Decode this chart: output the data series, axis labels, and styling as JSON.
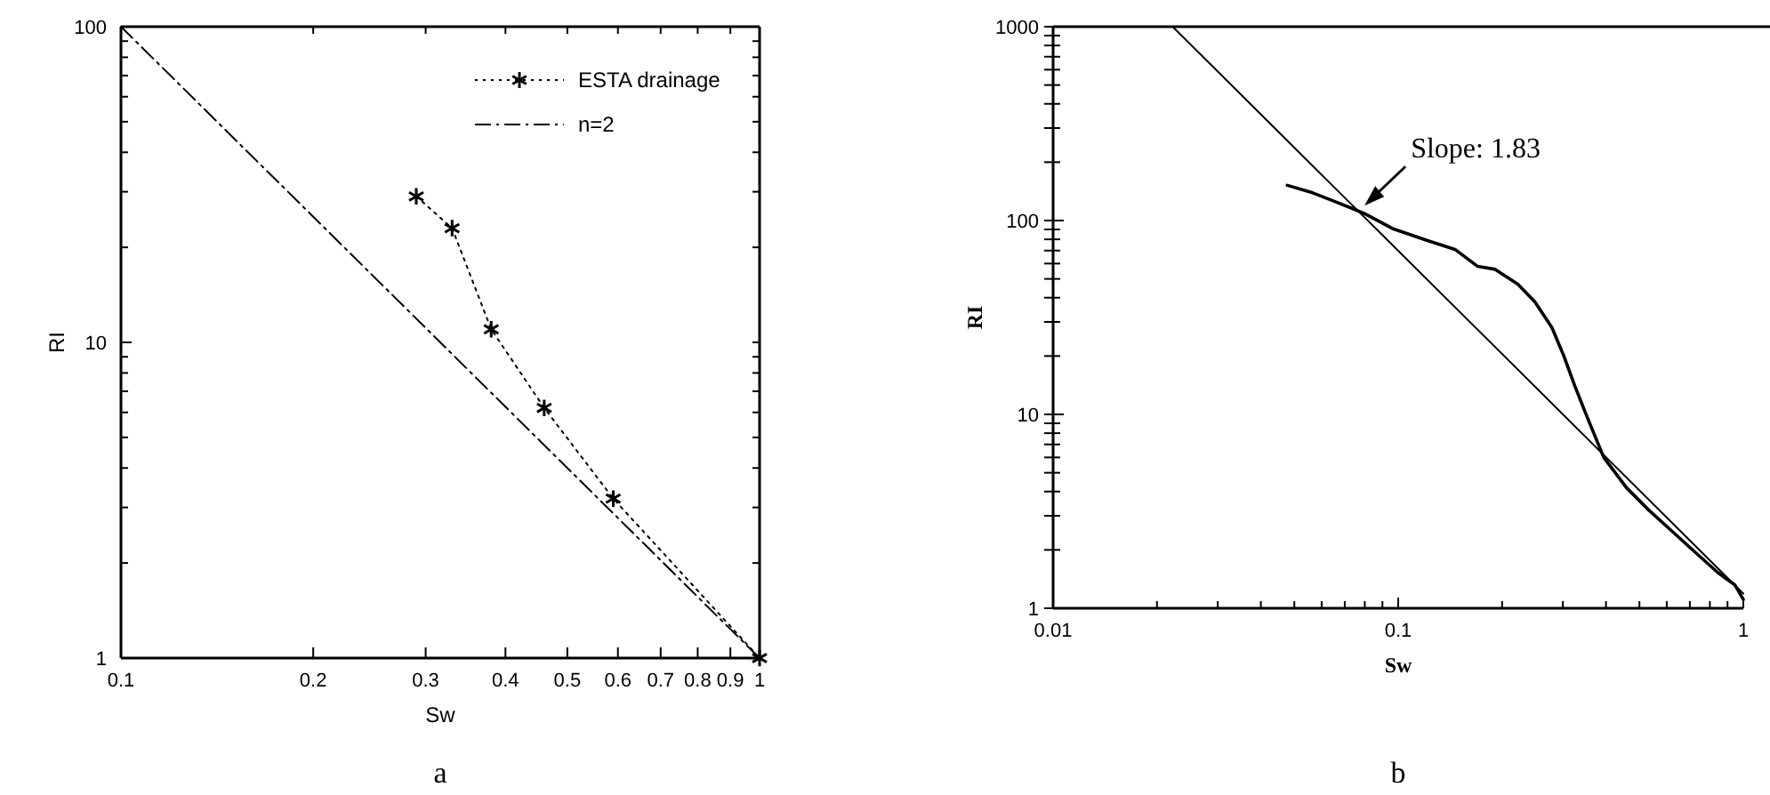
{
  "chart_data": [
    {
      "type": "line",
      "xlabel": "Sw",
      "ylabel": "RI",
      "log": "xy",
      "legend": "top right",
      "xlim": [
        0.1,
        1
      ],
      "ylim": [
        1,
        100
      ],
      "xticks": [
        0.1,
        0.2,
        0.3,
        0.4,
        0.5,
        0.6,
        0.7,
        0.8,
        0.9,
        1
      ],
      "yticks": [
        1,
        {
          "value": 2,
          "label": null
        },
        {
          "value": 3,
          "label": null
        },
        {
          "value": 4,
          "label": null
        },
        {
          "value": 5,
          "label": null
        },
        {
          "value": 6,
          "label": null
        },
        {
          "value": 7,
          "label": null
        },
        {
          "value": 8,
          "label": null
        },
        {
          "value": 9,
          "label": null
        },
        10,
        {
          "value": 20,
          "label": null
        },
        {
          "value": 30,
          "label": null
        },
        {
          "value": 40,
          "label": null
        },
        {
          "value": 50,
          "label": null
        },
        {
          "value": 60,
          "label": null
        },
        {
          "value": 70,
          "label": null
        },
        {
          "value": 80,
          "label": null
        },
        {
          "value": 90,
          "label": null
        },
        100
      ],
      "series": [
        {
          "name": "ESTA drainage",
          "color": "#000000",
          "marker": "cross",
          "line_style": "dotted",
          "x": [
            0.29,
            0.33,
            0.38,
            0.46,
            0.59,
            1
          ],
          "values": [
            29,
            23,
            11,
            6.2,
            3.2,
            1
          ]
        },
        {
          "name": "n=2",
          "color": "#000000",
          "marker": "none",
          "line_style": "dashed",
          "x": [
            0.1,
            1
          ],
          "values": [
            100,
            1
          ]
        }
      ],
      "annotations": [
        "a"
      ]
    },
    {
      "type": "line",
      "xlabel": "Sw",
      "ylabel": "RI",
      "log": "xy",
      "xlim": [
        0.01,
        1
      ],
      "ylim": [
        1,
        1000
      ],
      "xticks": [
        0.01,
        {
          "value": 0.02,
          "label": null
        },
        {
          "value": 0.03,
          "label": null
        },
        {
          "value": 0.04,
          "label": null
        },
        {
          "value": 0.05,
          "label": null
        },
        {
          "value": 0.06,
          "label": null
        },
        {
          "value": 0.07,
          "label": null
        },
        {
          "value": 0.08,
          "label": null
        },
        {
          "value": 0.09,
          "label": null
        },
        0.1,
        {
          "value": 0.2,
          "label": null
        },
        {
          "value": 0.3,
          "label": null
        },
        {
          "value": 0.4,
          "label": null
        },
        {
          "value": 0.5,
          "label": null
        },
        {
          "value": 0.6,
          "label": null
        },
        {
          "value": 0.7,
          "label": null
        },
        {
          "value": 0.8,
          "label": null
        },
        {
          "value": 0.9,
          "label": null
        },
        1
      ],
      "yticks": [
        1,
        {
          "value": 2,
          "label": null
        },
        {
          "value": 3,
          "label": null
        },
        {
          "value": 4,
          "label": null
        },
        {
          "value": 5,
          "label": null
        },
        {
          "value": 6,
          "label": null
        },
        {
          "value": 7,
          "label": null
        },
        {
          "value": 8,
          "label": null
        },
        {
          "value": 9,
          "label": null
        },
        10,
        {
          "value": 20,
          "label": null
        },
        {
          "value": 30,
          "label": null
        },
        {
          "value": 40,
          "label": null
        },
        {
          "value": 50,
          "label": null
        },
        {
          "value": 60,
          "label": null
        },
        {
          "value": 70,
          "label": null
        },
        {
          "value": 80,
          "label": null
        },
        {
          "value": 90,
          "label": null
        },
        100,
        {
          "value": 200,
          "label": null
        },
        {
          "value": 300,
          "label": null
        },
        {
          "value": 400,
          "label": null
        },
        {
          "value": 500,
          "label": null
        },
        {
          "value": 600,
          "label": null
        },
        {
          "value": 700,
          "label": null
        },
        {
          "value": 800,
          "label": null
        },
        {
          "value": 900,
          "label": null
        },
        1000
      ],
      "series": [
        {
          "color": "#000000",
          "marker": "none",
          "line_style": "solid",
          "x": [
            0.0477,
            0.0565,
            0.0658,
            0.0796,
            0.0962,
            0.121,
            0.146,
            0.17,
            0.191,
            0.222,
            0.249,
            0.279,
            0.302,
            0.325,
            0.351,
            0.394,
            0.458,
            0.533,
            0.621,
            0.724,
            0.843,
            0.945,
            1
          ],
          "values": [
            152,
            139,
            125,
            109,
            91,
            79,
            71,
            58,
            56,
            47,
            38,
            28,
            20,
            14,
            9.9,
            6,
            4.2,
            3.2,
            2.5,
            1.95,
            1.53,
            1.32,
            1.11
          ]
        },
        {
          "color": "#000000",
          "marker": "none",
          "line_style": "solid",
          "x": [
            0.0222,
            1
          ],
          "values": [
            1000,
            1.19
          ]
        }
      ],
      "annotations": [
        {
          "text": "Slope: 1.83",
          "x": 0.078,
          "y": 112
        },
        "b"
      ]
    }
  ]
}
